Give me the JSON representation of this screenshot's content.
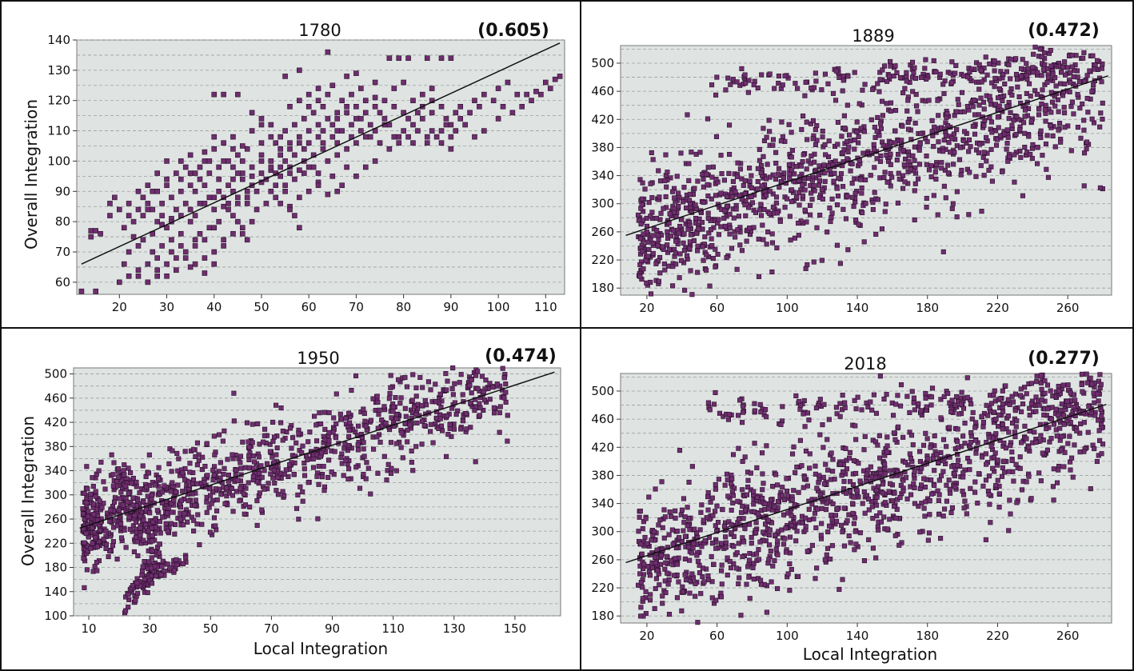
{
  "figure": {
    "xlabel": "Local Integration",
    "ylabel": "Overall Integration",
    "marker_color": "#6e2e6e",
    "marker_edge_color": "#2a0f2a",
    "plot_bg": "#dfe4e2"
  },
  "chart_data": [
    {
      "type": "scatter",
      "title": "1780",
      "annotation": "(0.605)",
      "xlabel": "",
      "ylabel": "Overall Integration",
      "xlim": [
        11,
        114
      ],
      "ylim": [
        56,
        140
      ],
      "xticks": [
        20,
        30,
        40,
        50,
        60,
        70,
        80,
        90,
        100,
        110
      ],
      "yticks": [
        60,
        70,
        80,
        90,
        100,
        110,
        120,
        130,
        140
      ],
      "trendline": [
        [
          12,
          66
        ],
        [
          113,
          139
        ]
      ],
      "grid": "horizontal dashed",
      "points": [
        [
          12,
          57
        ],
        [
          15,
          57
        ],
        [
          14,
          75
        ],
        [
          14,
          77
        ],
        [
          15,
          77
        ],
        [
          16,
          76
        ],
        [
          18,
          82
        ],
        [
          20,
          60
        ],
        [
          22,
          62
        ],
        [
          23,
          75
        ],
        [
          25,
          74
        ],
        [
          26,
          84
        ],
        [
          28,
          80
        ],
        [
          30,
          78
        ],
        [
          28,
          64
        ],
        [
          30,
          66
        ],
        [
          32,
          68
        ],
        [
          34,
          70
        ],
        [
          36,
          72
        ],
        [
          38,
          74
        ],
        [
          40,
          70
        ],
        [
          35,
          65
        ],
        [
          38,
          63
        ],
        [
          42,
          72
        ],
        [
          25,
          88
        ],
        [
          27,
          90
        ],
        [
          30,
          92
        ],
        [
          33,
          94
        ],
        [
          35,
          96
        ],
        [
          38,
          92
        ],
        [
          40,
          88
        ],
        [
          42,
          85
        ],
        [
          44,
          82
        ],
        [
          45,
          80
        ],
        [
          46,
          76
        ],
        [
          47,
          74
        ],
        [
          30,
          100
        ],
        [
          33,
          100
        ],
        [
          35,
          102
        ],
        [
          38,
          103
        ],
        [
          40,
          104
        ],
        [
          42,
          100
        ],
        [
          44,
          98
        ],
        [
          45,
          96
        ],
        [
          48,
          95
        ],
        [
          50,
          93
        ],
        [
          52,
          97
        ],
        [
          54,
          95
        ],
        [
          55,
          100
        ],
        [
          56,
          85
        ],
        [
          57,
          82
        ],
        [
          58,
          78
        ],
        [
          55,
          92
        ],
        [
          57,
          102
        ],
        [
          59,
          104
        ],
        [
          60,
          106
        ],
        [
          62,
          108
        ],
        [
          63,
          110
        ],
        [
          65,
          112
        ],
        [
          66,
          114
        ],
        [
          68,
          116
        ],
        [
          70,
          118
        ],
        [
          72,
          120
        ],
        [
          74,
          121
        ],
        [
          75,
          116
        ],
        [
          77,
          112
        ],
        [
          79,
          108
        ],
        [
          80,
          110
        ],
        [
          82,
          106
        ],
        [
          85,
          108
        ],
        [
          88,
          110
        ],
        [
          90,
          112
        ],
        [
          92,
          118
        ],
        [
          95,
          120
        ],
        [
          97,
          122
        ],
        [
          100,
          124
        ],
        [
          102,
          126
        ],
        [
          104,
          122
        ],
        [
          106,
          122
        ],
        [
          108,
          123
        ],
        [
          110,
          126
        ],
        [
          112,
          127
        ],
        [
          113,
          128
        ],
        [
          77,
          134
        ],
        [
          79,
          134
        ],
        [
          81,
          134
        ],
        [
          85,
          134
        ],
        [
          88,
          134
        ],
        [
          90,
          134
        ],
        [
          65,
          125
        ],
        [
          62,
          124
        ],
        [
          68,
          128
        ],
        [
          70,
          129
        ],
        [
          60,
          122
        ],
        [
          58,
          120
        ],
        [
          56,
          118
        ],
        [
          48,
          110
        ],
        [
          50,
          112
        ],
        [
          52,
          108
        ],
        [
          46,
          105
        ],
        [
          44,
          108
        ],
        [
          40,
          122
        ],
        [
          42,
          122
        ],
        [
          45,
          122
        ],
        [
          55,
          128
        ],
        [
          58,
          130
        ],
        [
          64,
          136
        ],
        [
          80,
          126
        ],
        [
          86,
          120
        ],
        [
          92,
          114
        ],
        [
          96,
          118
        ],
        [
          50,
          102
        ],
        [
          52,
          100
        ],
        [
          54,
          104
        ],
        [
          60,
          98
        ],
        [
          62,
          96
        ],
        [
          64,
          100
        ],
        [
          66,
          102
        ],
        [
          68,
          104
        ],
        [
          70,
          106
        ],
        [
          72,
          108
        ],
        [
          74,
          110
        ],
        [
          76,
          112
        ],
        [
          65,
          95
        ],
        [
          67,
          92
        ],
        [
          64,
          89
        ],
        [
          62,
          93
        ],
        [
          58,
          97
        ],
        [
          53,
          88
        ],
        [
          51,
          86
        ],
        [
          49,
          84
        ],
        [
          47,
          90
        ],
        [
          43,
          92
        ],
        [
          41,
          94
        ],
        [
          39,
          96
        ],
        [
          37,
          98
        ],
        [
          36,
          90
        ],
        [
          34,
          86
        ],
        [
          32,
          84
        ],
        [
          31,
          81
        ],
        [
          29,
          79
        ],
        [
          27,
          76
        ],
        [
          24,
          72
        ],
        [
          22,
          70
        ],
        [
          21,
          66
        ],
        [
          24,
          64
        ],
        [
          26,
          66
        ],
        [
          28,
          68
        ],
        [
          31,
          70
        ],
        [
          33,
          72
        ],
        [
          36,
          74
        ],
        [
          37,
          76
        ],
        [
          39,
          78
        ],
        [
          41,
          80
        ],
        [
          43,
          84
        ],
        [
          45,
          86
        ],
        [
          47,
          88
        ],
        [
          49,
          90
        ],
        [
          51,
          94
        ],
        [
          53,
          96
        ],
        [
          56,
          98
        ],
        [
          59,
          100
        ],
        [
          61,
          102
        ],
        [
          63,
          104
        ],
        [
          66,
          106
        ],
        [
          69,
          108
        ],
        [
          71,
          110
        ],
        [
          73,
          112
        ],
        [
          76,
          114
        ],
        [
          78,
          108
        ],
        [
          81,
          114
        ],
        [
          83,
          116
        ],
        [
          86,
          110
        ],
        [
          89,
          112
        ],
        [
          91,
          110
        ],
        [
          94,
          116
        ],
        [
          99,
          120
        ],
        [
          101,
          118
        ],
        [
          72,
          98
        ],
        [
          74,
          100
        ],
        [
          70,
          95
        ],
        [
          68,
          98
        ],
        [
          66,
          90
        ],
        [
          88,
          118
        ],
        [
          90,
          108
        ],
        [
          84,
          122
        ],
        [
          78,
          124
        ],
        [
          74,
          126
        ],
        [
          71,
          124
        ],
        [
          69,
          122
        ],
        [
          67,
          120
        ],
        [
          63,
          118
        ],
        [
          61,
          116
        ],
        [
          59,
          114
        ],
        [
          57,
          112
        ],
        [
          55,
          110
        ],
        [
          53,
          106
        ],
        [
          50,
          106
        ],
        [
          47,
          104
        ],
        [
          45,
          102
        ],
        [
          43,
          100
        ],
        [
          41,
          98
        ],
        [
          39,
          100
        ],
        [
          37,
          94
        ],
        [
          35,
          92
        ],
        [
          33,
          90
        ],
        [
          31,
          88
        ],
        [
          29,
          86
        ],
        [
          27,
          84
        ],
        [
          25,
          82
        ],
        [
          23,
          80
        ],
        [
          21,
          78
        ],
        [
          19,
          88
        ],
        [
          22,
          86
        ],
        [
          24,
          90
        ],
        [
          26,
          92
        ],
        [
          28,
          96
        ],
        [
          36,
          82
        ],
        [
          38,
          86
        ],
        [
          40,
          84
        ],
        [
          42,
          88
        ],
        [
          44,
          90
        ],
        [
          46,
          94
        ],
        [
          48,
          98
        ],
        [
          52,
          90
        ],
        [
          54,
          86
        ],
        [
          56,
          84
        ],
        [
          58,
          88
        ],
        [
          60,
          90
        ],
        [
          62,
          92
        ],
        [
          38,
          68
        ],
        [
          40,
          66
        ],
        [
          42,
          74
        ],
        [
          44,
          76
        ],
        [
          46,
          78
        ],
        [
          48,
          80
        ],
        [
          36,
          66
        ],
        [
          34,
          68
        ],
        [
          32,
          64
        ],
        [
          30,
          62
        ],
        [
          28,
          62
        ],
        [
          26,
          60
        ],
        [
          24,
          62
        ],
        [
          40,
          78
        ],
        [
          35,
          80
        ],
        [
          33,
          76
        ],
        [
          31,
          74
        ],
        [
          29,
          72
        ],
        [
          27,
          70
        ],
        [
          44,
          94
        ],
        [
          46,
          96
        ],
        [
          48,
          92
        ],
        [
          50,
          96
        ],
        [
          52,
          98
        ],
        [
          54,
          102
        ],
        [
          56,
          104
        ],
        [
          58,
          106
        ],
        [
          60,
          110
        ],
        [
          62,
          112
        ],
        [
          64,
          114
        ],
        [
          66,
          116
        ],
        [
          68,
          118
        ],
        [
          70,
          114
        ],
        [
          72,
          116
        ],
        [
          74,
          118
        ],
        [
          76,
          120
        ],
        [
          78,
          118
        ],
        [
          80,
          116
        ],
        [
          82,
          112
        ],
        [
          84,
          114
        ],
        [
          86,
          116
        ],
        [
          88,
          106
        ],
        [
          90,
          104
        ],
        [
          93,
          112
        ],
        [
          95,
          108
        ],
        [
          97,
          110
        ],
        [
          100,
          114
        ],
        [
          103,
          116
        ],
        [
          105,
          118
        ],
        [
          107,
          120
        ],
        [
          109,
          122
        ],
        [
          111,
          124
        ],
        [
          82,
          120
        ],
        [
          84,
          118
        ],
        [
          86,
          124
        ],
        [
          60,
          118
        ],
        [
          62,
          120
        ],
        [
          64,
          122
        ],
        [
          66,
          110
        ],
        [
          58,
          108
        ],
        [
          56,
          106
        ],
        [
          54,
          98
        ],
        [
          50,
          100
        ],
        [
          46,
          100
        ],
        [
          44,
          104
        ],
        [
          42,
          106
        ],
        [
          40,
          108
        ],
        [
          38,
          100
        ],
        [
          36,
          96
        ],
        [
          34,
          98
        ],
        [
          32,
          96
        ],
        [
          30,
          94
        ],
        [
          28,
          90
        ],
        [
          26,
          86
        ],
        [
          24,
          84
        ],
        [
          22,
          82
        ],
        [
          20,
          84
        ],
        [
          18,
          86
        ],
        [
          54,
          108
        ],
        [
          52,
          112
        ],
        [
          50,
          114
        ],
        [
          48,
          116
        ],
        [
          56,
          96
        ],
        [
          53,
          92
        ],
        [
          55,
          90
        ],
        [
          57,
          94
        ],
        [
          59,
          96
        ],
        [
          61,
          98
        ],
        [
          63,
          106
        ],
        [
          65,
          108
        ],
        [
          67,
          110
        ],
        [
          69,
          112
        ],
        [
          71,
          114
        ],
        [
          73,
          108
        ],
        [
          75,
          106
        ],
        [
          77,
          104
        ],
        [
          79,
          106
        ],
        [
          81,
          108
        ],
        [
          83,
          110
        ],
        [
          85,
          106
        ],
        [
          87,
          108
        ],
        [
          89,
          114
        ],
        [
          91,
          116
        ],
        [
          47,
          86
        ],
        [
          45,
          88
        ],
        [
          43,
          86
        ],
        [
          41,
          90
        ],
        [
          39,
          88
        ],
        [
          37,
          86
        ],
        [
          35,
          84
        ],
        [
          33,
          82
        ],
        [
          31,
          80
        ],
        [
          29,
          82
        ]
      ]
    },
    {
      "type": "scatter",
      "title": "1889",
      "annotation": "(0.472)",
      "xlabel": "",
      "ylabel": "",
      "xlim": [
        5,
        285
      ],
      "ylim": [
        170,
        525
      ],
      "xticks": [
        20,
        60,
        100,
        140,
        180,
        220,
        260
      ],
      "yticks": [
        180,
        220,
        260,
        300,
        340,
        380,
        420,
        460,
        500
      ],
      "trendline": [
        [
          8,
          255
        ],
        [
          283,
          482
        ]
      ],
      "grid": "horizontal dashed",
      "generator": {
        "seed": 1889,
        "n_main": 1300,
        "extra": "upper_arc"
      }
    },
    {
      "type": "scatter",
      "title": "1950",
      "annotation": "(0.474)",
      "xlabel": "Local Integration",
      "ylabel": "Overall Integration",
      "xlim": [
        5,
        165
      ],
      "ylim": [
        100,
        510
      ],
      "xticks": [
        10,
        30,
        50,
        70,
        90,
        110,
        130,
        150
      ],
      "yticks": [
        100,
        140,
        180,
        220,
        260,
        300,
        340,
        380,
        420,
        460,
        500
      ],
      "trendline": [
        [
          7,
          245
        ],
        [
          163,
          503
        ]
      ],
      "grid": "horizontal dashed",
      "generator": {
        "seed": 1950,
        "n_main": 1100,
        "extra": "hook"
      }
    },
    {
      "type": "scatter",
      "title": "2018",
      "annotation": "(0.277)",
      "xlabel": "Local Integration",
      "ylabel": "",
      "xlim": [
        5,
        285
      ],
      "ylim": [
        170,
        525
      ],
      "xticks": [
        20,
        60,
        100,
        140,
        180,
        220,
        260
      ],
      "yticks": [
        180,
        220,
        260,
        300,
        340,
        380,
        420,
        460,
        500
      ],
      "trendline": [
        [
          8,
          256
        ],
        [
          282,
          481
        ]
      ],
      "grid": "horizontal dashed",
      "generator": {
        "seed": 2018,
        "n_main": 1300,
        "extra": "upper_arc"
      }
    }
  ]
}
